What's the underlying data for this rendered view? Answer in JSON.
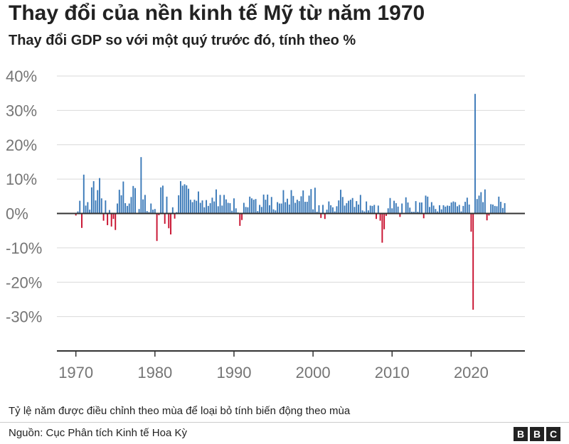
{
  "header": {
    "title": "Thay đổi của nền kinh tế Mỹ từ năm 1970",
    "subtitle": "Thay đổi GDP so với một quý trước đó, tính theo %"
  },
  "footer": {
    "note": "Tỷ lệ năm được điều chỉnh theo mùa để loại bỏ tính biến động theo mùa",
    "source": "Nguồn: Cục Phân tích Kinh tế Hoa Kỳ",
    "logo": [
      "B",
      "B",
      "C"
    ]
  },
  "colors": {
    "positive": "#3a79b8",
    "negative": "#c8102e",
    "grid": "#d9d9d9",
    "axis": "#333333"
  },
  "chart_data": {
    "type": "bar",
    "title": "Thay đổi GDP so với một quý trước đó, tính theo %",
    "xlabel": "",
    "ylabel": "",
    "xlim": [
      1967.6,
      2026.8
    ],
    "ylim": [
      -40,
      40
    ],
    "y_ticks": [
      40,
      30,
      20,
      10,
      0,
      -10,
      -20,
      -30
    ],
    "y_tick_labels": [
      "40%",
      "30%",
      "20%",
      "10%",
      "0%",
      "-10%",
      "-20%",
      "-30%"
    ],
    "x_ticks": [
      1970,
      1980,
      1990,
      2000,
      2010,
      2020
    ],
    "x_tick_labels": [
      "1970",
      "1980",
      "1990",
      "2000",
      "2010",
      "2020"
    ],
    "grid": true,
    "x": [
      1970.0,
      1970.25,
      1970.5,
      1970.75,
      1971.0,
      1971.25,
      1971.5,
      1971.75,
      1972.0,
      1972.25,
      1972.5,
      1972.75,
      1973.0,
      1973.25,
      1973.5,
      1973.75,
      1974.0,
      1974.25,
      1974.5,
      1974.75,
      1975.0,
      1975.25,
      1975.5,
      1975.75,
      1976.0,
      1976.25,
      1976.5,
      1976.75,
      1977.0,
      1977.25,
      1977.5,
      1977.75,
      1978.0,
      1978.25,
      1978.5,
      1978.75,
      1979.0,
      1979.25,
      1979.5,
      1979.75,
      1980.0,
      1980.25,
      1980.5,
      1980.75,
      1981.0,
      1981.25,
      1981.5,
      1981.75,
      1982.0,
      1982.25,
      1982.5,
      1982.75,
      1983.0,
      1983.25,
      1983.5,
      1983.75,
      1984.0,
      1984.25,
      1984.5,
      1984.75,
      1985.0,
      1985.25,
      1985.5,
      1985.75,
      1986.0,
      1986.25,
      1986.5,
      1986.75,
      1987.0,
      1987.25,
      1987.5,
      1987.75,
      1988.0,
      1988.25,
      1988.5,
      1988.75,
      1989.0,
      1989.25,
      1989.5,
      1989.75,
      1990.0,
      1990.25,
      1990.5,
      1990.75,
      1991.0,
      1991.25,
      1991.5,
      1991.75,
      1992.0,
      1992.25,
      1992.5,
      1992.75,
      1993.0,
      1993.25,
      1993.5,
      1993.75,
      1994.0,
      1994.25,
      1994.5,
      1994.75,
      1995.0,
      1995.25,
      1995.5,
      1995.75,
      1996.0,
      1996.25,
      1996.5,
      1996.75,
      1997.0,
      1997.25,
      1997.5,
      1997.75,
      1998.0,
      1998.25,
      1998.5,
      1998.75,
      1999.0,
      1999.25,
      1999.5,
      1999.75,
      2000.0,
      2000.25,
      2000.5,
      2000.75,
      2001.0,
      2001.25,
      2001.5,
      2001.75,
      2002.0,
      2002.25,
      2002.5,
      2002.75,
      2003.0,
      2003.25,
      2003.5,
      2003.75,
      2004.0,
      2004.25,
      2004.5,
      2004.75,
      2005.0,
      2005.25,
      2005.5,
      2005.75,
      2006.0,
      2006.25,
      2006.5,
      2006.75,
      2007.0,
      2007.25,
      2007.5,
      2007.75,
      2008.0,
      2008.25,
      2008.5,
      2008.75,
      2009.0,
      2009.25,
      2009.5,
      2009.75,
      2010.0,
      2010.25,
      2010.5,
      2010.75,
      2011.0,
      2011.25,
      2011.5,
      2011.75,
      2012.0,
      2012.25,
      2012.5,
      2012.75,
      2013.0,
      2013.25,
      2013.5,
      2013.75,
      2014.0,
      2014.25,
      2014.5,
      2014.75,
      2015.0,
      2015.25,
      2015.5,
      2015.75,
      2016.0,
      2016.25,
      2016.5,
      2016.75,
      2017.0,
      2017.25,
      2017.5,
      2017.75,
      2018.0,
      2018.25,
      2018.5,
      2018.75,
      2019.0,
      2019.25,
      2019.5,
      2019.75,
      2020.0,
      2020.25,
      2020.5,
      2020.75,
      2021.0,
      2021.25,
      2021.5,
      2021.75,
      2022.0,
      2022.25,
      2022.5,
      2022.75,
      2023.0,
      2023.25,
      2023.5,
      2023.75,
      2024.0,
      2024.25
    ],
    "values": [
      -0.6,
      0.6,
      3.7,
      -4.2,
      11.3,
      2.3,
      3.3,
      1.1,
      7.6,
      9.4,
      3.8,
      6.8,
      10.3,
      4.4,
      -2.1,
      3.8,
      -3.4,
      1.0,
      -3.8,
      -1.6,
      -4.8,
      2.9,
      6.9,
      5.3,
      9.3,
      3.0,
      2.2,
      2.9,
      4.8,
      8.0,
      7.4,
      0.0,
      1.3,
      16.4,
      4.1,
      5.4,
      0.7,
      0.4,
      2.9,
      1.1,
      1.3,
      -8.0,
      -0.5,
      7.6,
      8.1,
      -3.0,
      4.9,
      -4.3,
      -6.1,
      1.8,
      -1.5,
      0.4,
      5.3,
      9.4,
      8.1,
      8.5,
      8.2,
      7.2,
      4.0,
      3.3,
      4.0,
      3.7,
      6.4,
      3.1,
      3.8,
      1.8,
      3.9,
      2.2,
      3.0,
      4.6,
      3.5,
      7.0,
      2.1,
      5.4,
      2.3,
      5.4,
      4.1,
      3.1,
      3.0,
      0.8,
      4.4,
      1.5,
      0.3,
      -3.6,
      -1.9,
      3.1,
      1.9,
      1.8,
      4.9,
      4.4,
      4.0,
      4.2,
      0.7,
      2.5,
      1.9,
      5.5,
      4.0,
      5.5,
      2.4,
      4.8,
      1.2,
      0.9,
      3.3,
      2.9,
      2.9,
      6.8,
      3.3,
      4.3,
      2.6,
      6.8,
      5.1,
      3.1,
      4.0,
      3.6,
      5.0,
      6.7,
      3.4,
      3.4,
      5.2,
      7.1,
      1.2,
      7.5,
      0.5,
      2.4,
      -1.3,
      2.5,
      -1.6,
      1.1,
      3.5,
      2.4,
      1.8,
      0.6,
      2.1,
      3.8,
      6.9,
      4.8,
      2.3,
      3.0,
      3.7,
      4.0,
      4.5,
      1.9,
      3.6,
      2.6,
      5.4,
      0.9,
      0.6,
      3.5,
      0.9,
      2.3,
      2.2,
      2.5,
      -1.6,
      2.3,
      -2.1,
      -8.5,
      -4.6,
      -0.7,
      1.5,
      4.5,
      1.5,
      3.7,
      3.0,
      2.0,
      -1.0,
      2.9,
      -0.1,
      4.7,
      3.2,
      1.7,
      0.5,
      0.5,
      3.6,
      0.5,
      3.2,
      3.2,
      -1.4,
      5.2,
      4.9,
      1.9,
      3.3,
      2.3,
      1.3,
      0.6,
      2.4,
      1.2,
      2.4,
      2.0,
      2.3,
      2.2,
      3.2,
      3.5,
      3.3,
      2.1,
      2.5,
      0.6,
      2.2,
      3.4,
      4.6,
      2.6,
      -5.3,
      -28.0,
      34.8,
      4.2,
      5.2,
      6.2,
      3.3,
      7.0,
      -2.0,
      -0.6,
      2.7,
      2.6,
      2.2,
      2.1,
      4.9,
      3.4,
      1.6,
      3.0
    ]
  }
}
